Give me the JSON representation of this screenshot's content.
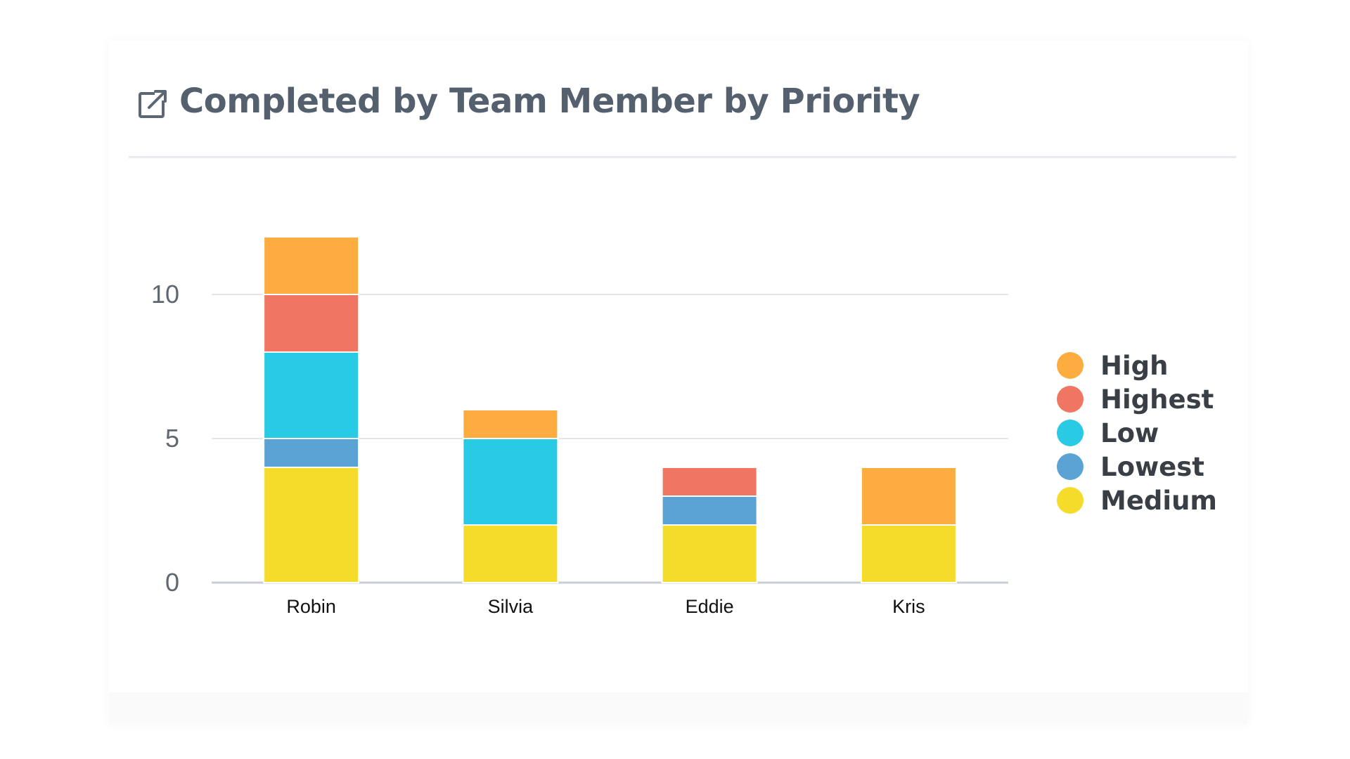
{
  "header": {
    "title": "Completed by Team Member by Priority",
    "icon": "external-link-icon"
  },
  "chart_data": {
    "type": "bar",
    "stacked": true,
    "title": "Completed by Team Member by Priority",
    "xlabel": "",
    "ylabel": "",
    "categories": [
      "Robin",
      "Silvia",
      "Eddie",
      "Kris"
    ],
    "ylim": [
      0,
      12
    ],
    "yticks": [
      0,
      5,
      10
    ],
    "grid": true,
    "legend_position": "right",
    "series": [
      {
        "name": "Medium",
        "color": "#f5dc2a",
        "values": [
          4,
          2,
          2,
          2
        ]
      },
      {
        "name": "Lowest",
        "color": "#5ba3d4",
        "values": [
          1,
          0,
          1,
          0
        ]
      },
      {
        "name": "Low",
        "color": "#29cae3",
        "values": [
          3,
          3,
          0,
          0
        ]
      },
      {
        "name": "Highest",
        "color": "#f07663",
        "values": [
          2,
          0,
          1,
          0
        ]
      },
      {
        "name": "High",
        "color": "#fdad40",
        "values": [
          2,
          1,
          0,
          2
        ]
      }
    ],
    "legend_order": [
      "High",
      "Highest",
      "Low",
      "Lowest",
      "Medium"
    ]
  }
}
